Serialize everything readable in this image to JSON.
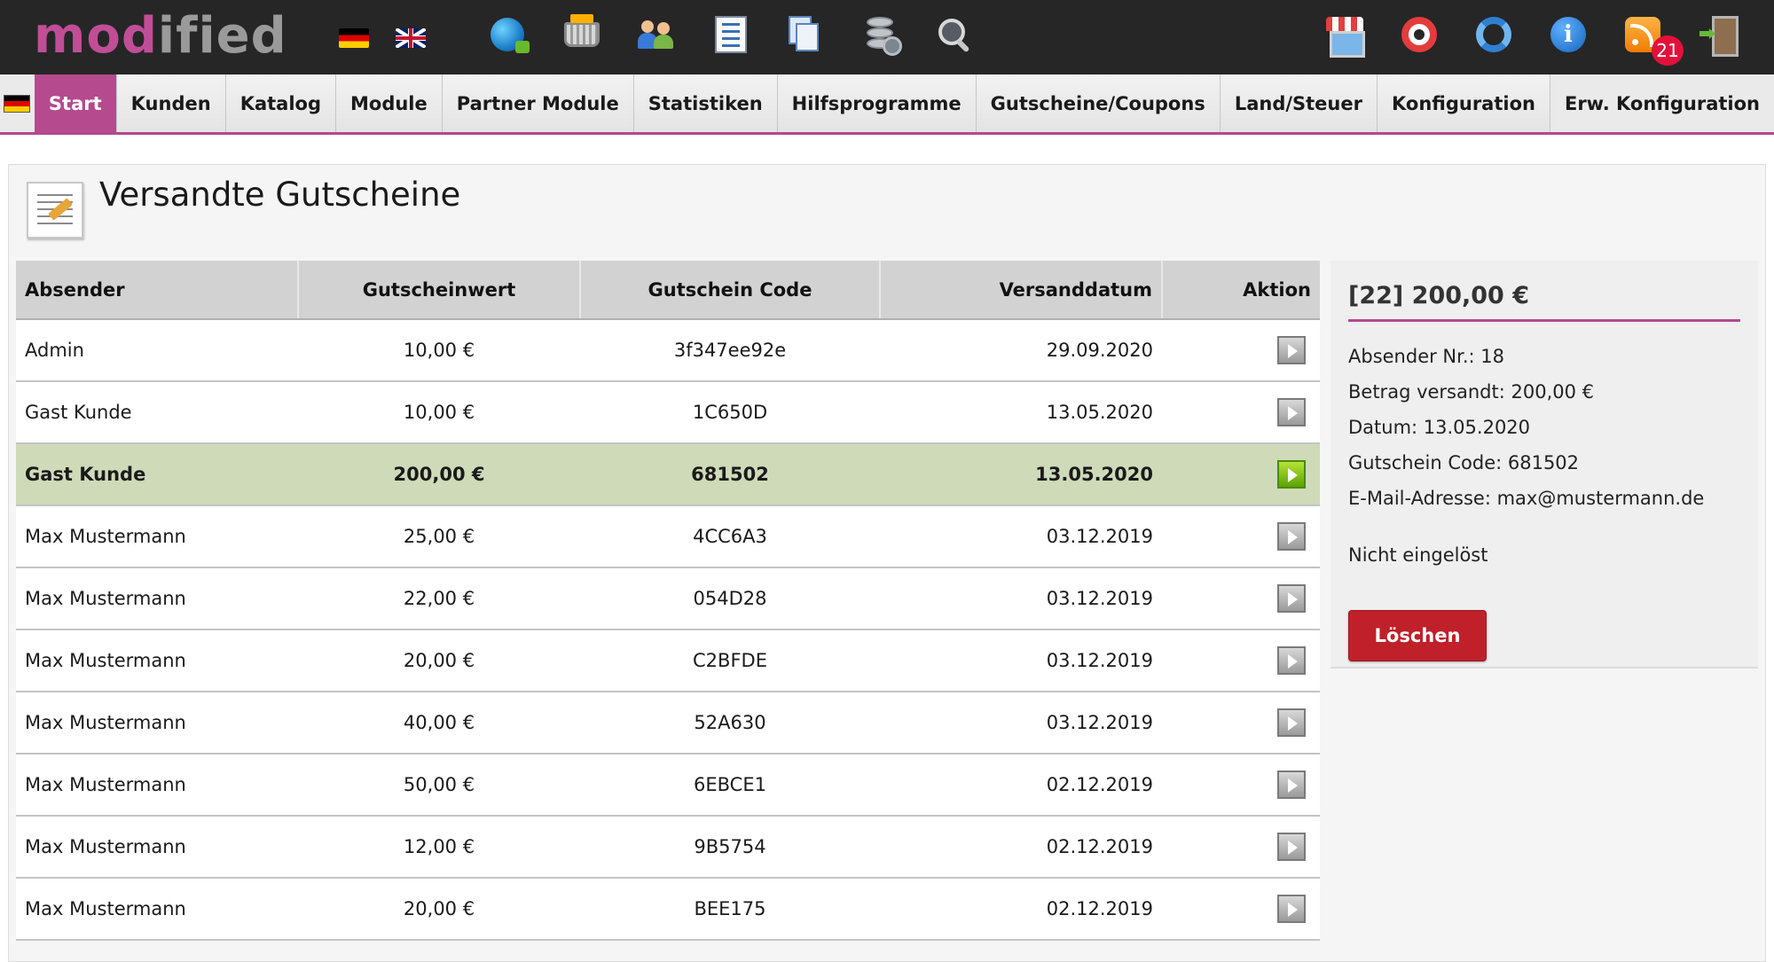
{
  "header": {
    "logo_part1": "mod",
    "logo_part2": "ified",
    "rss_badge_count": "21",
    "icons": [
      "flag-de-icon",
      "flag-uk-icon",
      "globe-icon",
      "basket-icon",
      "customers-icon",
      "document-icon",
      "documents-icon",
      "database-icon",
      "search-icon",
      "shop-icon",
      "help-icon",
      "sync-icon",
      "info-icon",
      "rss-icon",
      "logout-icon"
    ]
  },
  "nav": {
    "items": [
      "Start",
      "Kunden",
      "Katalog",
      "Module",
      "Partner Module",
      "Statistiken",
      "Hilfsprogramme",
      "Gutscheine/Coupons",
      "Land/Steuer",
      "Konfiguration",
      "Erw. Konfiguration"
    ],
    "active_index": 0
  },
  "page": {
    "title": "Versandte Gutscheine"
  },
  "table": {
    "headers": [
      "Absender",
      "Gutscheinwert",
      "Gutschein Code",
      "Versanddatum",
      "Aktion"
    ],
    "selected_index": 2,
    "rows": [
      {
        "sender": "Admin",
        "value": "10,00 €",
        "code": "3f347ee92e",
        "date": "29.09.2020"
      },
      {
        "sender": "Gast Kunde",
        "value": "10,00 €",
        "code": "1C650D",
        "date": "13.05.2020"
      },
      {
        "sender": "Gast Kunde",
        "value": "200,00 €",
        "code": "681502",
        "date": "13.05.2020"
      },
      {
        "sender": "Max Mustermann",
        "value": "25,00 €",
        "code": "4CC6A3",
        "date": "03.12.2019"
      },
      {
        "sender": "Max Mustermann",
        "value": "22,00 €",
        "code": "054D28",
        "date": "03.12.2019"
      },
      {
        "sender": "Max Mustermann",
        "value": "20,00 €",
        "code": "C2BFDE",
        "date": "03.12.2019"
      },
      {
        "sender": "Max Mustermann",
        "value": "40,00 €",
        "code": "52A630",
        "date": "03.12.2019"
      },
      {
        "sender": "Max Mustermann",
        "value": "50,00 €",
        "code": "6EBCE1",
        "date": "02.12.2019"
      },
      {
        "sender": "Max Mustermann",
        "value": "12,00 €",
        "code": "9B5754",
        "date": "02.12.2019"
      },
      {
        "sender": "Max Mustermann",
        "value": "20,00 €",
        "code": "BEE175",
        "date": "02.12.2019"
      }
    ]
  },
  "detail": {
    "title": "[22] 200,00 €",
    "sender_no": "Absender Nr.: 18",
    "amount": "Betrag versandt: 200,00 €",
    "date": "Datum: 13.05.2020",
    "code": "Gutschein Code: 681502",
    "email": "E-Mail-Adresse: max@mustermann.de",
    "status": "Nicht eingelöst",
    "delete_label": "Löschen"
  },
  "colors": {
    "accent": "#b54a8e",
    "topbar": "#262626",
    "selected_row": "#cfdab8",
    "delete_button": "#c0202a"
  }
}
